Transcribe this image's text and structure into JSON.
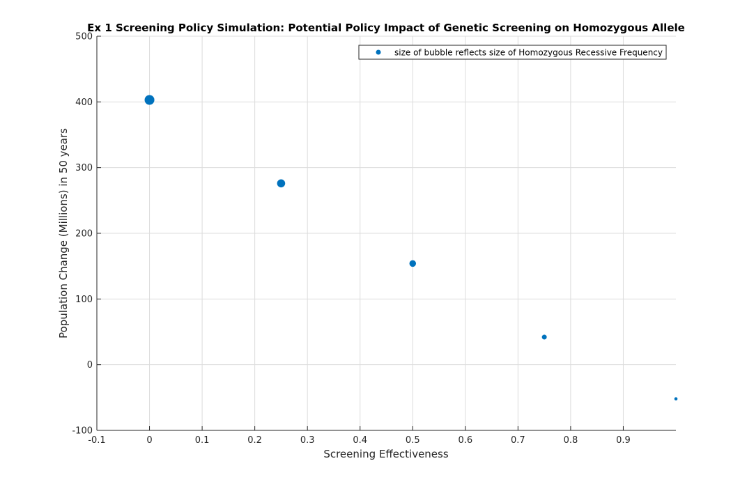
{
  "chart_data": {
    "type": "scatter",
    "title": "Ex 1 Screening Policy Simulation: Potential Policy Impact of Genetic Screening on Homozygous Allele",
    "xlabel": "Screening Effectiveness",
    "ylabel": "Population Change (Millions) in 50 years",
    "xlim": [
      -0.1,
      1.0
    ],
    "ylim": [
      -100,
      500
    ],
    "xticks": [
      -0.1,
      0,
      0.1,
      0.2,
      0.3,
      0.4,
      0.5,
      0.6,
      0.7,
      0.8,
      0.9
    ],
    "xtick_labels": [
      "-0.1",
      "0",
      "0.1",
      "0.2",
      "0.3",
      "0.4",
      "0.5",
      "0.6",
      "0.7",
      "0.8",
      "0.9"
    ],
    "yticks": [
      -100,
      0,
      100,
      200,
      300,
      400,
      500
    ],
    "ytick_labels": [
      "-100",
      "0",
      "100",
      "200",
      "300",
      "400",
      "500"
    ],
    "grid": true,
    "color": "#0072BD",
    "legend": {
      "placement": "top-right",
      "entries": [
        "size of bubble reflects size of Homozygous Recessive Frequency"
      ]
    },
    "series": [
      {
        "name": "size of bubble reflects size of Homozygous Recessive Frequency",
        "x": [
          0,
          0.25,
          0.5,
          0.75,
          1.0
        ],
        "y": [
          403,
          276,
          154,
          42,
          -52
        ],
        "relative_size": [
          1.0,
          0.83,
          0.68,
          0.5,
          0.33
        ]
      }
    ]
  }
}
